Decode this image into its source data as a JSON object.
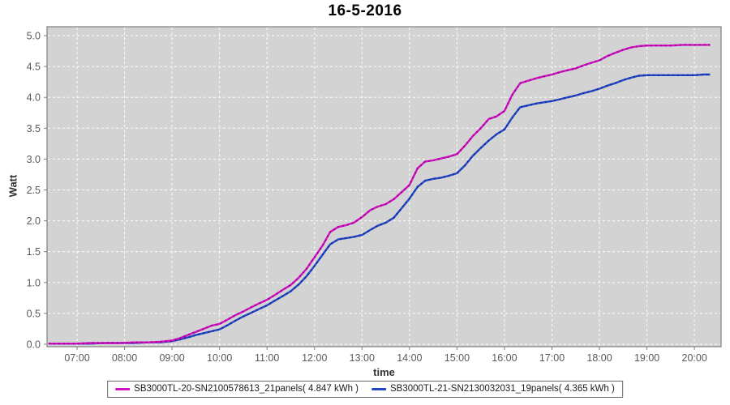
{
  "chart_data": {
    "type": "line",
    "title": "16-5-2016",
    "xlabel": "time",
    "ylabel": "Watt",
    "x_unit": "decimal_hours",
    "xlim": [
      6.37,
      20.56
    ],
    "ylim": [
      0.0,
      5.0
    ],
    "grid": true,
    "legend_position": "bottom",
    "plot_bg": "#d3d3d3",
    "grid_color": "#ffffff",
    "axis_text_color": "#595959",
    "x_ticks": [
      {
        "label": "07:00",
        "hour": 7
      },
      {
        "label": "08:00",
        "hour": 8
      },
      {
        "label": "09:00",
        "hour": 9
      },
      {
        "label": "10:00",
        "hour": 10
      },
      {
        "label": "11:00",
        "hour": 11
      },
      {
        "label": "12:00",
        "hour": 12
      },
      {
        "label": "13:00",
        "hour": 13
      },
      {
        "label": "14:00",
        "hour": 14
      },
      {
        "label": "15:00",
        "hour": 15
      },
      {
        "label": "16:00",
        "hour": 16
      },
      {
        "label": "17:00",
        "hour": 17
      },
      {
        "label": "18:00",
        "hour": 18
      },
      {
        "label": "19:00",
        "hour": 19
      },
      {
        "label": "20:00",
        "hour": 20
      }
    ],
    "y_ticks": [
      {
        "label": "0.0",
        "value": 0.0
      },
      {
        "label": "0.5",
        "value": 0.5
      },
      {
        "label": "1.0",
        "value": 1.0
      },
      {
        "label": "1.5",
        "value": 1.5
      },
      {
        "label": "2.0",
        "value": 2.0
      },
      {
        "label": "2.5",
        "value": 2.5
      },
      {
        "label": "3.0",
        "value": 3.0
      },
      {
        "label": "3.5",
        "value": 3.5
      },
      {
        "label": "4.0",
        "value": 4.0
      },
      {
        "label": "4.5",
        "value": 4.5
      },
      {
        "label": "5.0",
        "value": 5.0
      }
    ],
    "x": [
      6.4,
      6.7,
      7.0,
      7.3,
      7.6,
      7.9,
      8.2,
      8.5,
      8.75,
      9.0,
      9.17,
      9.33,
      9.5,
      9.67,
      9.83,
      10.0,
      10.17,
      10.33,
      10.5,
      10.67,
      10.83,
      11.0,
      11.17,
      11.33,
      11.5,
      11.67,
      11.83,
      12.0,
      12.17,
      12.33,
      12.5,
      12.67,
      12.83,
      13.0,
      13.17,
      13.33,
      13.5,
      13.67,
      13.83,
      14.0,
      14.17,
      14.33,
      14.5,
      14.67,
      14.83,
      15.0,
      15.17,
      15.33,
      15.5,
      15.67,
      15.83,
      16.0,
      16.17,
      16.33,
      16.5,
      16.67,
      16.83,
      17.0,
      17.17,
      17.33,
      17.5,
      17.67,
      17.83,
      18.0,
      18.17,
      18.33,
      18.5,
      18.67,
      18.83,
      19.0,
      19.25,
      19.5,
      19.75,
      20.0,
      20.2,
      20.33
    ],
    "series": [
      {
        "name": "SB3000TL-20-SN2100578613_21panels( 4.847 kWh )",
        "total_kwh": 4.847,
        "color": "#cf10c0",
        "color_dark": "#95008a",
        "values": [
          0.01,
          0.01,
          0.01,
          0.02,
          0.02,
          0.02,
          0.03,
          0.03,
          0.04,
          0.06,
          0.1,
          0.15,
          0.2,
          0.25,
          0.3,
          0.33,
          0.4,
          0.47,
          0.53,
          0.6,
          0.66,
          0.72,
          0.8,
          0.88,
          0.96,
          1.08,
          1.22,
          1.41,
          1.6,
          1.82,
          1.9,
          1.93,
          1.97,
          2.06,
          2.17,
          2.23,
          2.27,
          2.35,
          2.46,
          2.58,
          2.85,
          2.96,
          2.98,
          3.01,
          3.04,
          3.08,
          3.22,
          3.37,
          3.5,
          3.65,
          3.69,
          3.78,
          4.05,
          4.23,
          4.27,
          4.31,
          4.34,
          4.37,
          4.41,
          4.44,
          4.47,
          4.52,
          4.56,
          4.6,
          4.67,
          4.72,
          4.77,
          4.81,
          4.83,
          4.84,
          4.84,
          4.84,
          4.85,
          4.85,
          4.85,
          4.85
        ]
      },
      {
        "name": "SB3000TL-21-SN2130032031_19panels( 4.365 kWh )",
        "total_kwh": 4.365,
        "color": "#2345c6",
        "color_dark": "#0c2a92",
        "values": [
          0.01,
          0.01,
          0.01,
          0.01,
          0.02,
          0.02,
          0.02,
          0.03,
          0.03,
          0.05,
          0.08,
          0.11,
          0.15,
          0.18,
          0.21,
          0.24,
          0.31,
          0.38,
          0.45,
          0.51,
          0.57,
          0.63,
          0.71,
          0.78,
          0.86,
          0.97,
          1.1,
          1.27,
          1.45,
          1.62,
          1.7,
          1.72,
          1.74,
          1.77,
          1.85,
          1.92,
          1.97,
          2.05,
          2.2,
          2.36,
          2.55,
          2.65,
          2.68,
          2.7,
          2.73,
          2.77,
          2.9,
          3.05,
          3.18,
          3.3,
          3.4,
          3.48,
          3.68,
          3.84,
          3.87,
          3.9,
          3.92,
          3.94,
          3.97,
          4.0,
          4.03,
          4.07,
          4.1,
          4.14,
          4.19,
          4.23,
          4.28,
          4.32,
          4.35,
          4.36,
          4.36,
          4.36,
          4.36,
          4.36,
          4.37,
          4.37
        ]
      }
    ]
  }
}
